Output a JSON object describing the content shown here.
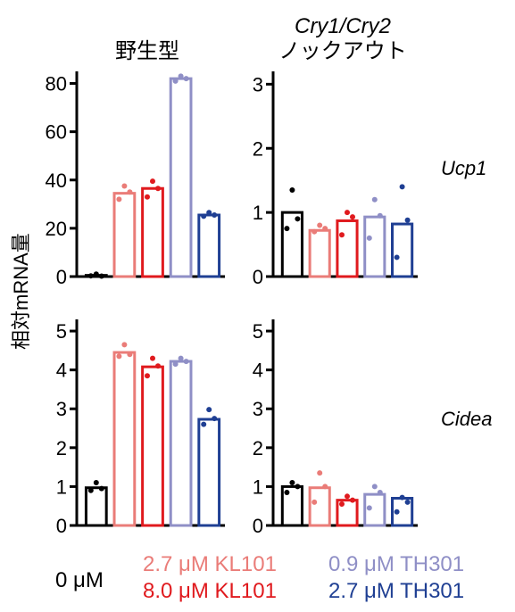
{
  "columns": [
    {
      "line1": "",
      "line2": "野生型"
    },
    {
      "line1": "Cry1/Cry2",
      "line2": "ノックアウト"
    }
  ],
  "rows": [
    "Ucp1",
    "Cidea"
  ],
  "ylabel": "相対mRNA量",
  "legend": {
    "control": "0 μM",
    "kl101_low": "2.7 μM KL101",
    "kl101_high": "8.0 μM KL101",
    "th301_low": "0.9 μM TH301",
    "th301_high": "2.7 μM TH301"
  },
  "colors": {
    "control": "#000000",
    "kl101_low": "#ea7c78",
    "kl101_high": "#e01a1e",
    "th301_low": "#8f8fc6",
    "th301_high": "#1f3f93"
  },
  "chart_data": [
    {
      "type": "bar",
      "row": "Ucp1",
      "column": "野生型",
      "ylim": [
        0,
        85
      ],
      "yticks": [
        0,
        20,
        40,
        60,
        80
      ],
      "categories": [
        "0 μM",
        "2.7 μM KL101",
        "8.0 μM KL101",
        "0.9 μM TH301",
        "2.7 μM TH301"
      ],
      "values": [
        0.5,
        34.5,
        36.5,
        82,
        25.5
      ],
      "points": [
        [
          1.0,
          0.2,
          0.3
        ],
        [
          37.5,
          35,
          32
        ],
        [
          39.5,
          36.5,
          33
        ],
        [
          83,
          82,
          81
        ],
        [
          26.5,
          25.5,
          25
        ]
      ]
    },
    {
      "type": "bar",
      "row": "Ucp1",
      "column": "Cry1/Cry2 ノックアウト",
      "ylim": [
        0,
        3.2
      ],
      "yticks": [
        0,
        1,
        2,
        3
      ],
      "categories": [
        "0 μM",
        "2.7 μM KL101",
        "8.0 μM KL101",
        "0.9 μM TH301",
        "2.7 μM TH301"
      ],
      "values": [
        1.0,
        0.72,
        0.87,
        0.93,
        0.82
      ],
      "points": [
        [
          1.35,
          0.9,
          0.75
        ],
        [
          0.8,
          0.75,
          0.7
        ],
        [
          1.0,
          0.93,
          0.65
        ],
        [
          1.2,
          0.95,
          0.6
        ],
        [
          1.4,
          0.88,
          0.3
        ]
      ]
    },
    {
      "type": "bar",
      "row": "Cidea",
      "column": "野生型",
      "ylim": [
        0,
        5.3
      ],
      "yticks": [
        0,
        1,
        2,
        3,
        4,
        5
      ],
      "categories": [
        "0 μM",
        "2.7 μM KL101",
        "8.0 μM KL101",
        "0.9 μM TH301",
        "2.7 μM TH301"
      ],
      "values": [
        0.97,
        4.45,
        4.08,
        4.22,
        2.73
      ],
      "points": [
        [
          1.1,
          0.95,
          0.9
        ],
        [
          4.65,
          4.4,
          4.35
        ],
        [
          4.3,
          4.1,
          3.85
        ],
        [
          4.3,
          4.22,
          4.15
        ],
        [
          2.98,
          2.75,
          2.6
        ]
      ]
    },
    {
      "type": "bar",
      "row": "Cidea",
      "column": "Cry1/Cry2 ノックアウト",
      "ylim": [
        0,
        5.3
      ],
      "yticks": [
        0,
        1,
        2,
        3,
        4,
        5
      ],
      "categories": [
        "0 μM",
        "2.7 μM KL101",
        "8.0 μM KL101",
        "0.9 μM TH301",
        "2.7 μM TH301"
      ],
      "values": [
        1.0,
        0.97,
        0.65,
        0.8,
        0.7
      ],
      "points": [
        [
          1.1,
          1.0,
          0.85
        ],
        [
          1.35,
          1.0,
          0.6
        ],
        [
          0.75,
          0.65,
          0.55
        ],
        [
          1.0,
          0.85,
          0.45
        ],
        [
          0.72,
          0.6,
          0.35
        ]
      ]
    }
  ]
}
